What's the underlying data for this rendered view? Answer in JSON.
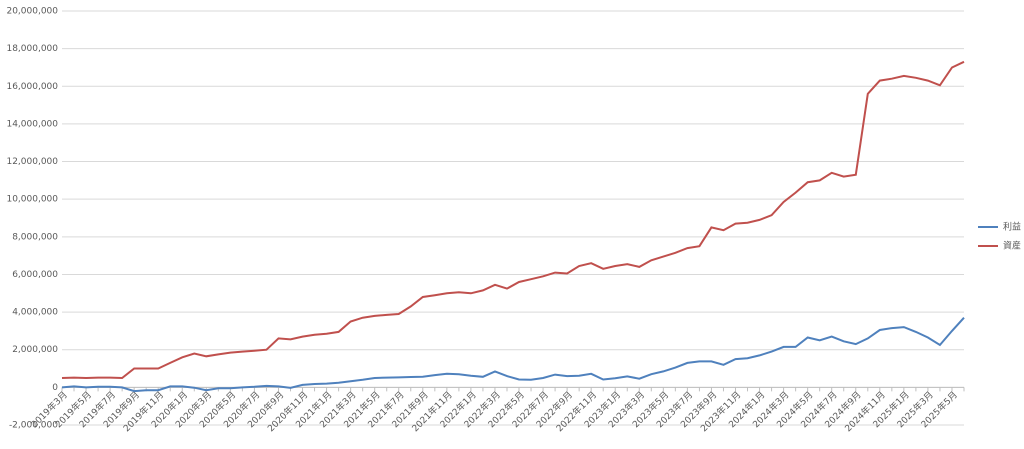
{
  "chart_data": {
    "type": "line",
    "categories": [
      "2019年3月",
      null,
      "2019年5月",
      null,
      "2019年7月",
      null,
      "2019年9月",
      null,
      "2019年11月",
      null,
      "2020年1月",
      null,
      "2020年3月",
      null,
      "2020年5月",
      null,
      "2020年7月",
      null,
      "2020年9月",
      null,
      "2020年11月",
      null,
      "2021年1月",
      null,
      "2021年3月",
      null,
      "2021年5月",
      null,
      "2021年7月",
      null,
      "2021年9月",
      null,
      "2021年11月",
      null,
      "2022年1月",
      null,
      "2022年3月",
      null,
      "2022年5月",
      null,
      "2022年7月",
      null,
      "2022年9月",
      null,
      "2022年11月",
      null,
      "2023年1月",
      null,
      "2023年3月",
      null,
      "2023年5月",
      null,
      "2023年7月",
      null,
      "2023年9月",
      null,
      "2023年11月",
      null,
      "2024年1月",
      null,
      "2024年3月",
      null,
      "2024年5月",
      null,
      "2024年7月",
      null,
      "2024年9月",
      null,
      "2024年11月",
      null,
      "2025年1月",
      null,
      "2025年3月",
      null,
      "2025年5月",
      null
    ],
    "series": [
      {
        "name": "利益",
        "color": "#4f81bd",
        "values": [
          0,
          50000,
          0,
          30000,
          30000,
          0,
          -200000,
          -150000,
          -150000,
          50000,
          50000,
          -20000,
          -150000,
          -50000,
          -50000,
          0,
          30000,
          80000,
          50000,
          -30000,
          130000,
          180000,
          200000,
          250000,
          330000,
          400000,
          500000,
          520000,
          530000,
          550000,
          560000,
          650000,
          720000,
          700000,
          620000,
          560000,
          850000,
          600000,
          420000,
          400000,
          500000,
          680000,
          600000,
          620000,
          720000,
          420000,
          480000,
          580000,
          460000,
          700000,
          850000,
          1050000,
          1300000,
          1380000,
          1380000,
          1200000,
          1500000,
          1550000,
          1700000,
          1900000,
          2150000,
          2150000,
          2650000,
          2500000,
          2700000,
          2450000,
          2300000,
          2600000,
          3050000,
          3150000,
          3200000,
          2950000,
          2650000,
          2250000,
          3000000,
          3700000
        ]
      },
      {
        "name": "資産",
        "color": "#c0504d",
        "values": [
          500000,
          520000,
          500000,
          520000,
          520000,
          500000,
          1000000,
          1000000,
          1000000,
          1300000,
          1600000,
          1800000,
          1650000,
          1750000,
          1850000,
          1900000,
          1950000,
          2000000,
          2600000,
          2550000,
          2700000,
          2800000,
          2850000,
          2950000,
          3500000,
          3700000,
          3800000,
          3850000,
          3900000,
          4300000,
          4800000,
          4900000,
          5000000,
          5050000,
          5000000,
          5150000,
          5450000,
          5250000,
          5600000,
          5750000,
          5900000,
          6100000,
          6050000,
          6450000,
          6600000,
          6300000,
          6450000,
          6550000,
          6400000,
          6750000,
          6950000,
          7150000,
          7400000,
          7500000,
          8500000,
          8350000,
          8700000,
          8750000,
          8900000,
          9150000,
          9850000,
          10350000,
          10900000,
          11000000,
          11400000,
          11200000,
          11300000,
          15600000,
          16300000,
          16400000,
          16550000,
          16450000,
          16300000,
          16050000,
          17000000,
          17300000
        ]
      }
    ],
    "ylim": [
      -2000000,
      20000000
    ],
    "yticks": [
      {
        "value": -2000000,
        "label": "-2,000,000"
      },
      0,
      {
        "value": 2000000,
        "label": "2,000,000"
      },
      {
        "value": 4000000,
        "label": "4,000,000"
      },
      {
        "value": 6000000,
        "label": "6,000,000"
      },
      {
        "value": 8000000,
        "label": "8,000,000"
      },
      {
        "value": 10000000,
        "label": "10,000,000"
      },
      {
        "value": 12000000,
        "label": "12,000,000"
      },
      {
        "value": 14000000,
        "label": "14,000,000"
      },
      {
        "value": 16000000,
        "label": "16,000,000"
      },
      {
        "value": 18000000,
        "label": "18,000,000"
      },
      {
        "value": 20000000,
        "label": "20,000,000"
      }
    ],
    "grid": true,
    "legend": "right"
  }
}
